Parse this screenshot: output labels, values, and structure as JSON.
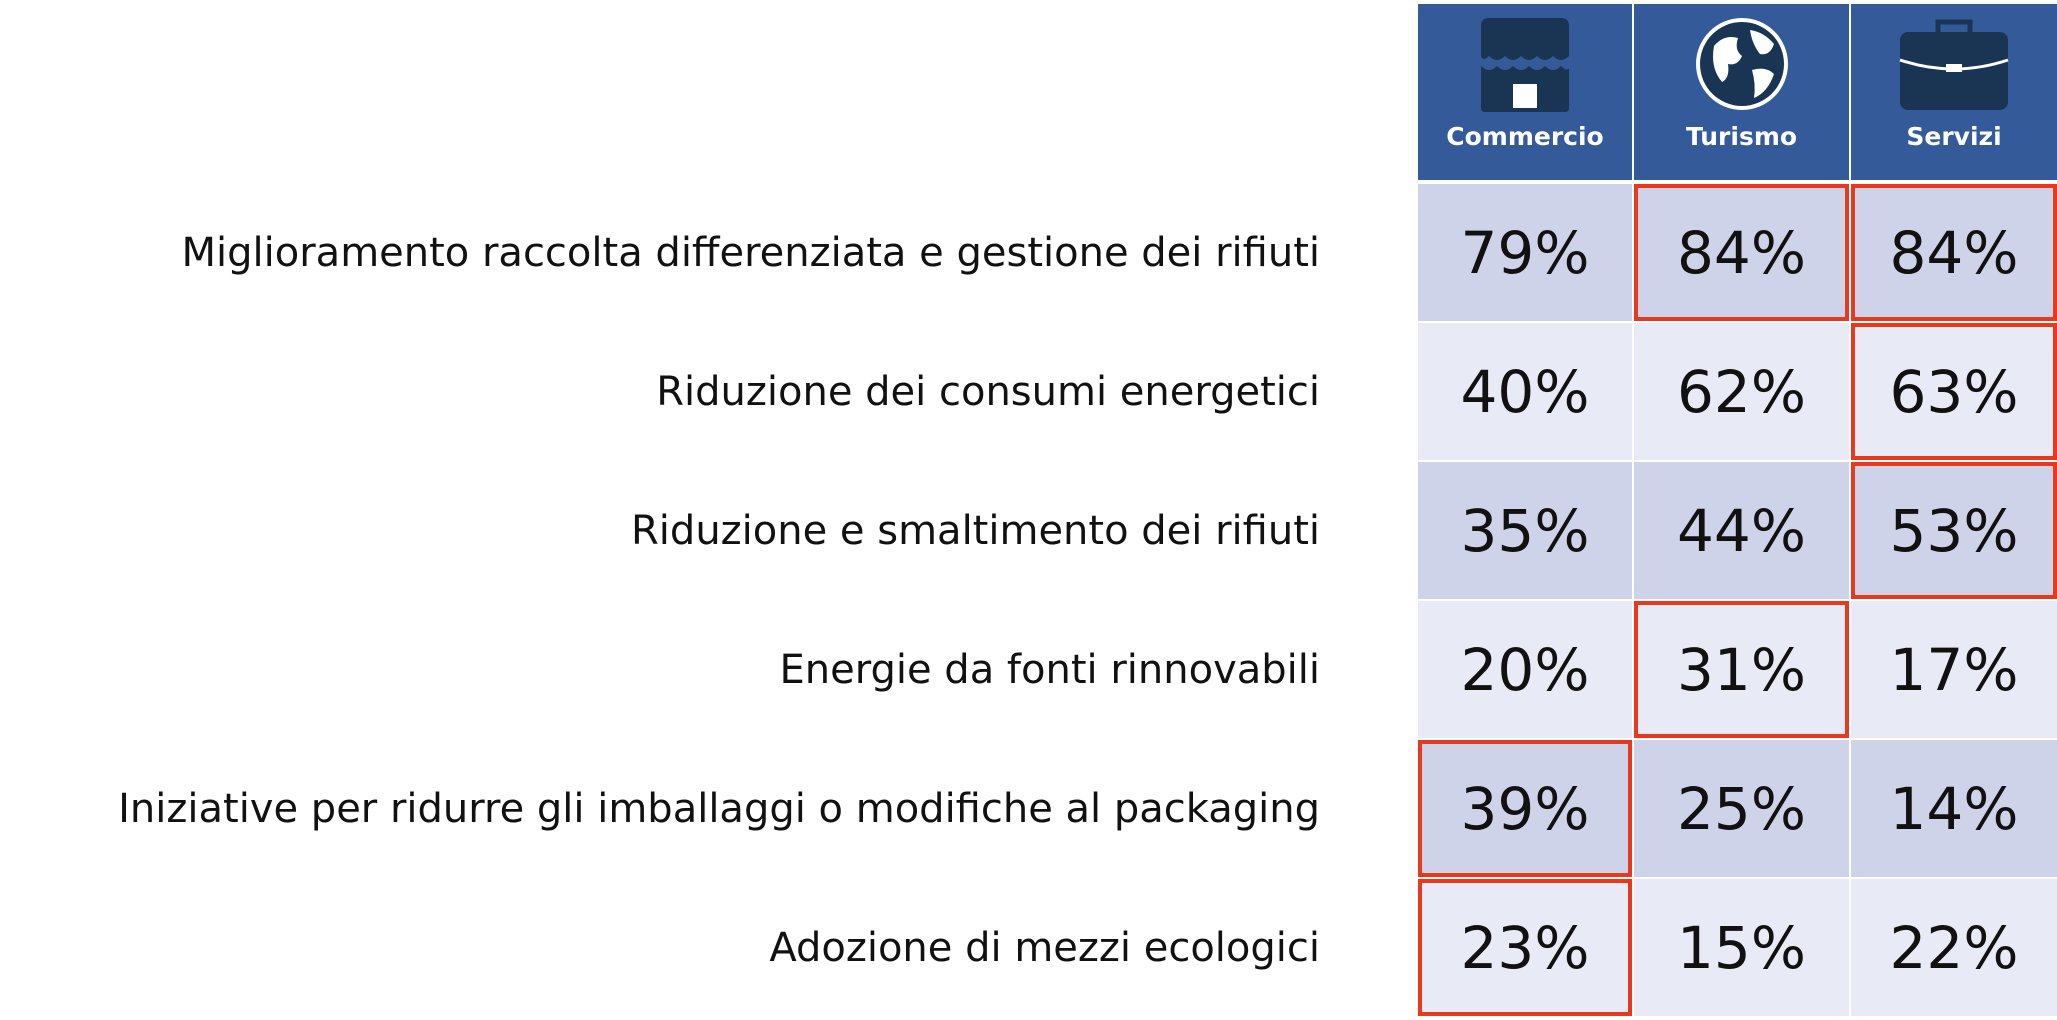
{
  "table": {
    "columns": [
      "Commercio",
      "Turismo",
      "Servizi"
    ],
    "rows": [
      {
        "label": "Miglioramento raccolta differenziata e gestione dei rifiuti",
        "cells": [
          "79%",
          "84%",
          "84%"
        ],
        "highlight": [
          false,
          true,
          true
        ]
      },
      {
        "label": "Riduzione dei consumi energetici",
        "cells": [
          "40%",
          "62%",
          "63%"
        ],
        "highlight": [
          false,
          false,
          true
        ]
      },
      {
        "label": "Riduzione e smaltimento dei rifiuti",
        "cells": [
          "35%",
          "44%",
          "53%"
        ],
        "highlight": [
          false,
          false,
          true
        ]
      },
      {
        "label": "Energie da fonti rinnovabili",
        "cells": [
          "20%",
          "31%",
          "17%"
        ],
        "highlight": [
          false,
          true,
          false
        ]
      },
      {
        "label": "Iniziative per ridurre gli imballaggi o modifiche al packaging",
        "cells": [
          "39%",
          "25%",
          "14%"
        ],
        "highlight": [
          true,
          false,
          false
        ]
      },
      {
        "label": "Adozione di mezzi ecologici",
        "cells": [
          "23%",
          "15%",
          "22%"
        ],
        "highlight": [
          true,
          false,
          false
        ]
      }
    ]
  }
}
